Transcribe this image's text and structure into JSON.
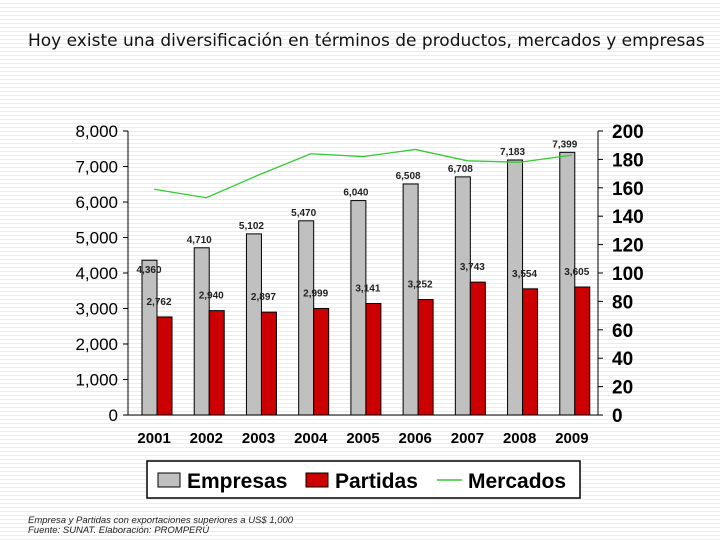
{
  "title": "Hoy existe una diversificación en términos de productos, mercados y empresas",
  "footnote": {
    "line1": "Empresa y Partidas con exportaciones superiores a US$ 1,000",
    "line2": "Fuente: SUNAT.  Elaboración: PROMPERÚ"
  },
  "chart_data": {
    "type": "bar",
    "categories": [
      "2001",
      "2002",
      "2003",
      "2004",
      "2005",
      "2006",
      "2007",
      "2008",
      "2009"
    ],
    "series": [
      {
        "name": "Empresas",
        "type": "bar",
        "axis": "left",
        "color": "#c0c0c0",
        "values": [
          4360,
          4710,
          5102,
          5470,
          6040,
          6508,
          6708,
          7183,
          7399
        ],
        "labels": [
          "4,360",
          "4,710",
          "5,102",
          "5,470",
          "6,040",
          "6,508",
          "6,708",
          "7,183",
          "7,399"
        ]
      },
      {
        "name": "Partidas",
        "type": "bar",
        "axis": "left",
        "color": "#cc0000",
        "values": [
          2762,
          2940,
          2897,
          2999,
          3141,
          3252,
          3743,
          3554,
          3605
        ],
        "labels": [
          "2,762",
          "2,940",
          "2,897",
          "2,999",
          "3,141",
          "3,252",
          "3,743",
          "3,554",
          "3,605"
        ]
      },
      {
        "name": "Mercados",
        "type": "line",
        "axis": "right",
        "color": "#33cc33",
        "values": [
          159,
          153,
          169,
          184,
          182,
          187,
          179,
          178,
          183
        ]
      }
    ],
    "ylim_left": [
      0,
      8000
    ],
    "yticks_left": [
      0,
      1000,
      2000,
      3000,
      4000,
      5000,
      6000,
      7000,
      8000
    ],
    "ytick_labels_left": [
      "0",
      "1,000",
      "2,000",
      "3,000",
      "4,000",
      "5,000",
      "6,000",
      "7,000",
      "8,000"
    ],
    "ylim_right": [
      0,
      200
    ],
    "yticks_right": [
      0,
      20,
      40,
      60,
      80,
      100,
      120,
      140,
      160,
      180,
      200
    ],
    "ytick_labels_right": [
      "0",
      "20",
      "40",
      "60",
      "80",
      "100",
      "120",
      "140",
      "160",
      "180",
      "200"
    ],
    "grid": false,
    "legend_position": "bottom"
  },
  "legend": {
    "empresas": "Empresas",
    "partidas": "Partidas",
    "mercados": "Mercados"
  }
}
